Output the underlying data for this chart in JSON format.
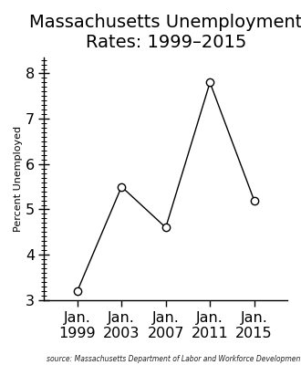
{
  "x_values": [
    1999,
    2003,
    2007,
    2011,
    2015
  ],
  "y_values": [
    3.2,
    5.5,
    4.6,
    7.8,
    5.2
  ],
  "x_tick_labels": [
    "Jan.\n1999",
    "Jan.\n2003",
    "Jan.\n2007",
    "Jan.\n2011",
    "Jan.\n2015"
  ],
  "title": "Massachusetts Unemployment\nRates: 1999–2015",
  "ylabel": "Percent Unemployed",
  "source": "source: Massachusetts Department of Labor and Workforce Development",
  "ylim": [
    3.0,
    8.35
  ],
  "xlim": [
    1996.0,
    2018.0
  ],
  "y_major_ticks": [
    3,
    4,
    5,
    6,
    7,
    8
  ],
  "line_color": "#000000",
  "marker_facecolor": "#ffffff",
  "marker_edgecolor": "#000000",
  "background_color": "#ffffff",
  "title_fontsize": 14,
  "ylabel_fontsize": 8,
  "tick_label_fontsize": 11.5,
  "source_fontsize": 5.5,
  "marker_size": 6,
  "linewidth": 1.0
}
